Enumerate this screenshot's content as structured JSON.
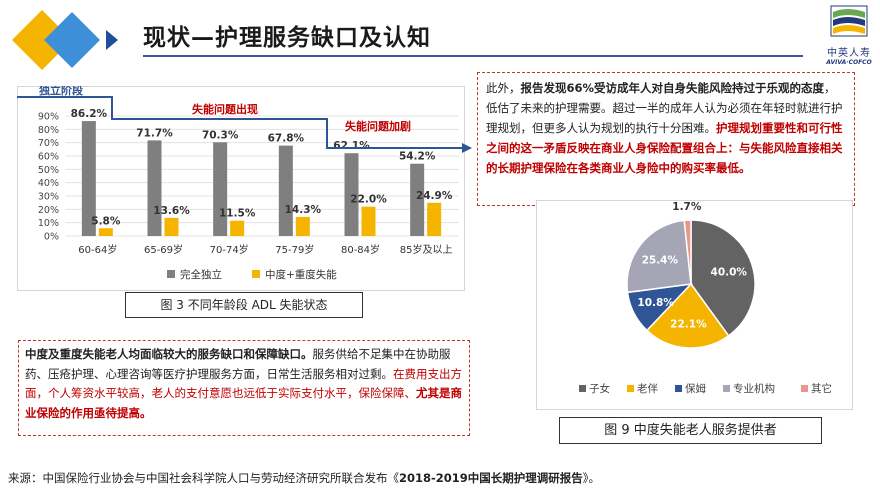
{
  "header": {
    "title": "现状—护理服务缺口及认知",
    "brand_cn": "中英人寿",
    "brand_en": "AVIVA·COFCO"
  },
  "colors": {
    "accent_blue": "#2f5597",
    "accent_red": "#c00000",
    "diamond_orange": "#f5b400",
    "diamond_blue": "#3d8fd8"
  },
  "chart_data": [
    {
      "type": "bar",
      "categories": [
        "60-64岁",
        "65-69岁",
        "70-74岁",
        "75-79岁",
        "80-84岁",
        "85岁及以上"
      ],
      "series": [
        {
          "name": "完全独立",
          "values": [
            86.2,
            71.7,
            70.3,
            67.8,
            62.1,
            54.2
          ],
          "color": "#7f7f7f"
        },
        {
          "name": "中度+重度失能",
          "values": [
            5.8,
            13.6,
            11.5,
            14.3,
            22.0,
            24.9
          ],
          "color": "#f5b400"
        }
      ],
      "data_labels": [
        [
          "86.2%",
          "71.7%",
          "70.3%",
          "67.8%",
          "62.1%",
          "54.2%"
        ],
        [
          "5.8%",
          "13.6%",
          "11.5%",
          "14.3%",
          "22.0%",
          "24.9%"
        ]
      ],
      "y_ticks": [
        "0%",
        "10%",
        "20%",
        "30%",
        "40%",
        "50%",
        "60%",
        "70%",
        "80%",
        "90%"
      ],
      "ylim": [
        0,
        90
      ],
      "grid": true,
      "legend_position": "bottom",
      "annotations": [
        "独立阶段",
        "失能问题出现",
        "失能问题加剧"
      ],
      "caption": "图 3    不同年龄段 ADL 失能状态"
    },
    {
      "type": "pie",
      "labels": [
        "子女",
        "老伴",
        "保姆",
        "专业机构",
        "其它"
      ],
      "values": [
        40.0,
        22.1,
        10.8,
        25.4,
        1.7
      ],
      "value_labels": [
        "40.0%",
        "22.1%",
        "10.8%",
        "25.4%",
        "1.7%"
      ],
      "colors": [
        "#636363",
        "#f5b400",
        "#2f5597",
        "#a5a5b5",
        "#e8958a"
      ],
      "legend_position": "bottom",
      "caption": "图 9    中度失能老人服务提供者"
    }
  ],
  "right_text": {
    "p1": "此外，",
    "p2": "报告发现66%受访成年人对自身失能风险持过于乐观的态度",
    "p3": "，低估了未来的护理需要。超过一半的成年人认为必须在年轻时就进行护理规划，但更多人认为规划的执行十分困难。",
    "p4": "护理规划重要性和可行性之间的这一矛盾反映在商业人身保险配置组合上：与失能风险直接相关的长期护理保险在各类商业人身险中的购买率最低。"
  },
  "left_text": {
    "p1": "中度及重度失能老人均面临较大的服务缺口和保障缺口。",
    "p2": "服务供给不足集中在协助服药、压疮护理、心理咨询等医疗护理服务方面，日常生活服务相对过剩。",
    "p3": "在费用支出方面，个人筹资水平较高，老人的支付意愿也远低于实际支付水平，保险保障、",
    "p4": "尤其是商业保险的作用亟待提高。"
  },
  "source": {
    "prefix": "来源：中国保险行业协会与中国社会科学院人口与劳动经济研究所联合发布《",
    "report": "2018-2019中国长期护理调研报告",
    "suffix": "》。"
  }
}
